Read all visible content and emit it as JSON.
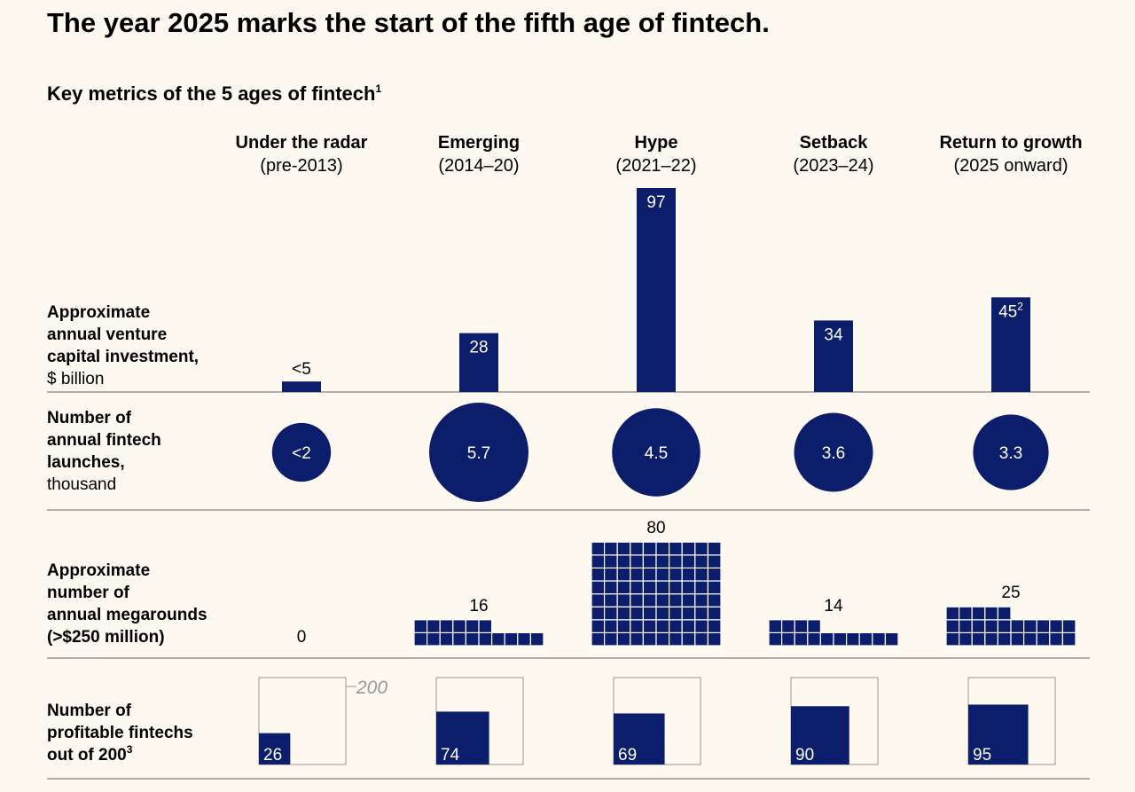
{
  "title": "The year 2025 marks the start of the fifth age of fintech.",
  "subtitle": "Key metrics of the 5 ages of fintech",
  "subtitle_note": "1",
  "colors": {
    "mark": "#0b1d6b",
    "background": "#fdf8f0",
    "rule": "#666666",
    "box": "#999999"
  },
  "eras": [
    {
      "name": "Under the radar",
      "dates": "(pre-2013)"
    },
    {
      "name": "Emerging",
      "dates": "(2014–20)"
    },
    {
      "name": "Hype",
      "dates": "(2021–22)"
    },
    {
      "name": "Setback",
      "dates": "(2023–24)"
    },
    {
      "name": "Return to growth",
      "dates": "(2025 onward)"
    }
  ],
  "chart_data": [
    {
      "type": "bar",
      "row_label": [
        "Approximate",
        "annual venture",
        "capital investment,"
      ],
      "row_unit": "$ billion",
      "categories": [
        "Under the radar",
        "Emerging",
        "Hype",
        "Setback",
        "Return to growth"
      ],
      "values": [
        5,
        28,
        97,
        34,
        45
      ],
      "labels": [
        "<5",
        "28",
        "97",
        "34",
        "45"
      ],
      "notes": [
        "",
        "",
        "",
        "",
        "2"
      ]
    },
    {
      "type": "bubble",
      "row_label": [
        "Number of",
        "annual fintech",
        "launches,"
      ],
      "row_unit": "thousand",
      "categories": [
        "Under the radar",
        "Emerging",
        "Hype",
        "Setback",
        "Return to growth"
      ],
      "values": [
        2,
        5.7,
        4.5,
        3.6,
        3.3
      ],
      "labels": [
        "<2",
        "5.7",
        "4.5",
        "3.6",
        "3.3"
      ]
    },
    {
      "type": "unit-grid",
      "row_label": [
        "Approximate",
        "number of",
        "annual megarounds",
        "(>$250 million)"
      ],
      "categories": [
        "Under the radar",
        "Emerging",
        "Hype",
        "Setback",
        "Return to growth"
      ],
      "values": [
        0,
        16,
        80,
        14,
        25
      ],
      "labels": [
        "0",
        "16",
        "80",
        "14",
        "25"
      ]
    },
    {
      "type": "box-fill",
      "row_label": [
        "Number of",
        "profitable fintechs",
        "out of 200"
      ],
      "row_note": "3",
      "total": 200,
      "total_label": "200",
      "categories": [
        "Under the radar",
        "Emerging",
        "Hype",
        "Setback",
        "Return to growth"
      ],
      "values": [
        26,
        74,
        69,
        90,
        95
      ],
      "labels": [
        "26",
        "74",
        "69",
        "90",
        "95"
      ]
    }
  ]
}
